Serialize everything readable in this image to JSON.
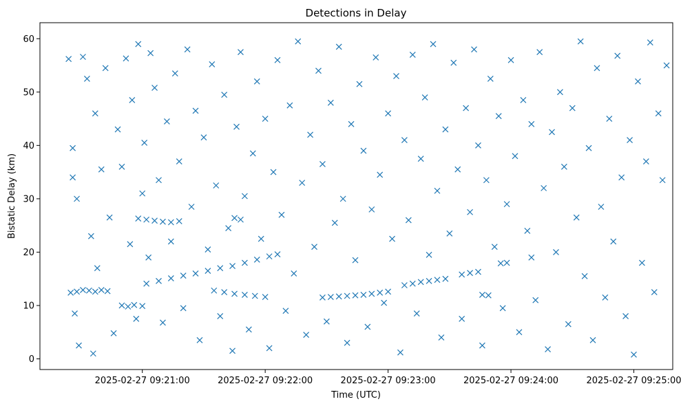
{
  "chart_data": {
    "type": "scatter",
    "title": "Detections in Delay",
    "xlabel": "Time (UTC)",
    "ylabel": "Bistatic Delay (km)",
    "marker": "x",
    "color": "#1f77b4",
    "grid": false,
    "xlim": [
      "2025-02-27 09:20:10",
      "2025-02-27 09:25:19"
    ],
    "ylim": [
      -2,
      63
    ],
    "x_ticks": [
      "2025-02-27 09:21:00",
      "2025-02-27 09:22:00",
      "2025-02-27 09:23:00",
      "2025-02-27 09:24:00",
      "2025-02-27 09:25:00"
    ],
    "y_ticks": [
      0,
      10,
      20,
      30,
      40,
      50,
      60
    ],
    "series": [
      {
        "values": [
          [
            "2025-02-27 09:20:25",
            12.4
          ],
          [
            "2025-02-27 09:20:28",
            12.6
          ],
          [
            "2025-02-27 09:20:31",
            12.9
          ],
          [
            "2025-02-27 09:20:34",
            12.8
          ],
          [
            "2025-02-27 09:20:37",
            12.6
          ],
          [
            "2025-02-27 09:20:40",
            12.9
          ],
          [
            "2025-02-27 09:20:43",
            12.7
          ],
          [
            "2025-02-27 09:20:50",
            10.0
          ],
          [
            "2025-02-27 09:20:53",
            9.8
          ],
          [
            "2025-02-27 09:20:56",
            10.1
          ],
          [
            "2025-02-27 09:21:00",
            9.9
          ],
          [
            "2025-02-27 09:21:02",
            14.1
          ],
          [
            "2025-02-27 09:21:08",
            14.6
          ],
          [
            "2025-02-27 09:21:14",
            15.1
          ],
          [
            "2025-02-27 09:21:20",
            15.6
          ],
          [
            "2025-02-27 09:21:26",
            16.0
          ],
          [
            "2025-02-27 09:21:32",
            16.5
          ],
          [
            "2025-02-27 09:21:38",
            17.0
          ],
          [
            "2025-02-27 09:21:44",
            17.4
          ],
          [
            "2025-02-27 09:21:50",
            18.0
          ],
          [
            "2025-02-27 09:21:56",
            18.6
          ],
          [
            "2025-02-27 09:22:02",
            19.2
          ],
          [
            "2025-02-27 09:22:06",
            19.6
          ],
          [
            "2025-02-27 09:21:35",
            12.8
          ],
          [
            "2025-02-27 09:21:40",
            12.5
          ],
          [
            "2025-02-27 09:21:45",
            12.2
          ],
          [
            "2025-02-27 09:21:50",
            12.0
          ],
          [
            "2025-02-27 09:21:55",
            11.8
          ],
          [
            "2025-02-27 09:22:00",
            11.6
          ],
          [
            "2025-02-27 09:20:58",
            26.3
          ],
          [
            "2025-02-27 09:21:02",
            26.1
          ],
          [
            "2025-02-27 09:21:06",
            25.9
          ],
          [
            "2025-02-27 09:21:10",
            25.7
          ],
          [
            "2025-02-27 09:21:14",
            25.6
          ],
          [
            "2025-02-27 09:21:18",
            25.8
          ],
          [
            "2025-02-27 09:21:45",
            26.4
          ],
          [
            "2025-02-27 09:21:48",
            26.1
          ],
          [
            "2025-02-27 09:22:28",
            11.5
          ],
          [
            "2025-02-27 09:22:32",
            11.6
          ],
          [
            "2025-02-27 09:22:36",
            11.7
          ],
          [
            "2025-02-27 09:22:40",
            11.8
          ],
          [
            "2025-02-27 09:22:44",
            11.9
          ],
          [
            "2025-02-27 09:22:48",
            12.0
          ],
          [
            "2025-02-27 09:22:52",
            12.2
          ],
          [
            "2025-02-27 09:22:56",
            12.4
          ],
          [
            "2025-02-27 09:23:00",
            12.6
          ],
          [
            "2025-02-27 09:23:08",
            13.8
          ],
          [
            "2025-02-27 09:23:12",
            14.1
          ],
          [
            "2025-02-27 09:23:16",
            14.4
          ],
          [
            "2025-02-27 09:23:20",
            14.6
          ],
          [
            "2025-02-27 09:23:24",
            14.8
          ],
          [
            "2025-02-27 09:23:28",
            15.0
          ],
          [
            "2025-02-27 09:23:36",
            15.8
          ],
          [
            "2025-02-27 09:23:40",
            16.1
          ],
          [
            "2025-02-27 09:23:44",
            16.3
          ],
          [
            "2025-02-27 09:23:46",
            12.0
          ],
          [
            "2025-02-27 09:23:49",
            11.9
          ],
          [
            "2025-02-27 09:23:55",
            17.9
          ],
          [
            "2025-02-27 09:23:58",
            18.0
          ],
          [
            "2025-02-27 09:24:10",
            19.0
          ],
          [
            "2025-02-27 09:20:24",
            56.2
          ],
          [
            "2025-02-27 09:20:26",
            34.0
          ],
          [
            "2025-02-27 09:20:26",
            39.5
          ],
          [
            "2025-02-27 09:20:27",
            8.5
          ],
          [
            "2025-02-27 09:20:28",
            30.0
          ],
          [
            "2025-02-27 09:20:29",
            2.5
          ],
          [
            "2025-02-27 09:20:31",
            56.6
          ],
          [
            "2025-02-27 09:20:33",
            52.5
          ],
          [
            "2025-02-27 09:20:35",
            23.0
          ],
          [
            "2025-02-27 09:20:36",
            1.0
          ],
          [
            "2025-02-27 09:20:37",
            46.0
          ],
          [
            "2025-02-27 09:20:38",
            17.0
          ],
          [
            "2025-02-27 09:20:40",
            35.5
          ],
          [
            "2025-02-27 09:20:42",
            54.5
          ],
          [
            "2025-02-27 09:20:44",
            26.5
          ],
          [
            "2025-02-27 09:20:46",
            4.8
          ],
          [
            "2025-02-27 09:20:48",
            43.0
          ],
          [
            "2025-02-27 09:20:50",
            36.0
          ],
          [
            "2025-02-27 09:20:52",
            56.3
          ],
          [
            "2025-02-27 09:20:54",
            21.5
          ],
          [
            "2025-02-27 09:20:55",
            48.5
          ],
          [
            "2025-02-27 09:20:57",
            7.5
          ],
          [
            "2025-02-27 09:20:58",
            59.0
          ],
          [
            "2025-02-27 09:21:00",
            31.0
          ],
          [
            "2025-02-27 09:21:01",
            40.5
          ],
          [
            "2025-02-27 09:21:03",
            19.0
          ],
          [
            "2025-02-27 09:21:04",
            57.3
          ],
          [
            "2025-02-27 09:21:06",
            50.8
          ],
          [
            "2025-02-27 09:21:08",
            33.5
          ],
          [
            "2025-02-27 09:21:10",
            6.8
          ],
          [
            "2025-02-27 09:21:12",
            44.5
          ],
          [
            "2025-02-27 09:21:14",
            22.0
          ],
          [
            "2025-02-27 09:21:16",
            53.5
          ],
          [
            "2025-02-27 09:21:18",
            37.0
          ],
          [
            "2025-02-27 09:21:20",
            9.5
          ],
          [
            "2025-02-27 09:21:22",
            58.0
          ],
          [
            "2025-02-27 09:21:24",
            28.5
          ],
          [
            "2025-02-27 09:21:26",
            46.5
          ],
          [
            "2025-02-27 09:21:28",
            3.5
          ],
          [
            "2025-02-27 09:21:30",
            41.5
          ],
          [
            "2025-02-27 09:21:32",
            20.5
          ],
          [
            "2025-02-27 09:21:34",
            55.2
          ],
          [
            "2025-02-27 09:21:36",
            32.5
          ],
          [
            "2025-02-27 09:21:38",
            8.0
          ],
          [
            "2025-02-27 09:21:40",
            49.5
          ],
          [
            "2025-02-27 09:21:42",
            24.5
          ],
          [
            "2025-02-27 09:21:44",
            1.5
          ],
          [
            "2025-02-27 09:21:46",
            43.5
          ],
          [
            "2025-02-27 09:21:48",
            57.5
          ],
          [
            "2025-02-27 09:21:50",
            30.5
          ],
          [
            "2025-02-27 09:21:52",
            5.5
          ],
          [
            "2025-02-27 09:21:54",
            38.5
          ],
          [
            "2025-02-27 09:21:56",
            52.0
          ],
          [
            "2025-02-27 09:21:58",
            22.5
          ],
          [
            "2025-02-27 09:22:00",
            45.0
          ],
          [
            "2025-02-27 09:22:02",
            2.0
          ],
          [
            "2025-02-27 09:22:04",
            35.0
          ],
          [
            "2025-02-27 09:22:06",
            56.0
          ],
          [
            "2025-02-27 09:22:08",
            27.0
          ],
          [
            "2025-02-27 09:22:10",
            9.0
          ],
          [
            "2025-02-27 09:22:12",
            47.5
          ],
          [
            "2025-02-27 09:22:14",
            16.0
          ],
          [
            "2025-02-27 09:22:16",
            59.5
          ],
          [
            "2025-02-27 09:22:18",
            33.0
          ],
          [
            "2025-02-27 09:22:20",
            4.5
          ],
          [
            "2025-02-27 09:22:22",
            42.0
          ],
          [
            "2025-02-27 09:22:24",
            21.0
          ],
          [
            "2025-02-27 09:22:26",
            54.0
          ],
          [
            "2025-02-27 09:22:28",
            36.5
          ],
          [
            "2025-02-27 09:22:30",
            7.0
          ],
          [
            "2025-02-27 09:22:32",
            48.0
          ],
          [
            "2025-02-27 09:22:34",
            25.5
          ],
          [
            "2025-02-27 09:22:36",
            58.5
          ],
          [
            "2025-02-27 09:22:38",
            30.0
          ],
          [
            "2025-02-27 09:22:40",
            3.0
          ],
          [
            "2025-02-27 09:22:42",
            44.0
          ],
          [
            "2025-02-27 09:22:44",
            18.5
          ],
          [
            "2025-02-27 09:22:46",
            51.5
          ],
          [
            "2025-02-27 09:22:48",
            39.0
          ],
          [
            "2025-02-27 09:22:50",
            6.0
          ],
          [
            "2025-02-27 09:22:52",
            28.0
          ],
          [
            "2025-02-27 09:22:54",
            56.5
          ],
          [
            "2025-02-27 09:22:56",
            34.5
          ],
          [
            "2025-02-27 09:22:58",
            10.5
          ],
          [
            "2025-02-27 09:23:00",
            46.0
          ],
          [
            "2025-02-27 09:23:02",
            22.5
          ],
          [
            "2025-02-27 09:23:04",
            53.0
          ],
          [
            "2025-02-27 09:23:06",
            1.2
          ],
          [
            "2025-02-27 09:23:08",
            41.0
          ],
          [
            "2025-02-27 09:23:10",
            26.0
          ],
          [
            "2025-02-27 09:23:12",
            57.0
          ],
          [
            "2025-02-27 09:23:14",
            8.5
          ],
          [
            "2025-02-27 09:23:16",
            37.5
          ],
          [
            "2025-02-27 09:23:18",
            49.0
          ],
          [
            "2025-02-27 09:23:20",
            19.5
          ],
          [
            "2025-02-27 09:23:22",
            59.0
          ],
          [
            "2025-02-27 09:23:24",
            31.5
          ],
          [
            "2025-02-27 09:23:26",
            4.0
          ],
          [
            "2025-02-27 09:23:28",
            43.0
          ],
          [
            "2025-02-27 09:23:30",
            23.5
          ],
          [
            "2025-02-27 09:23:32",
            55.5
          ],
          [
            "2025-02-27 09:23:34",
            35.5
          ],
          [
            "2025-02-27 09:23:36",
            7.5
          ],
          [
            "2025-02-27 09:23:38",
            47.0
          ],
          [
            "2025-02-27 09:23:40",
            27.5
          ],
          [
            "2025-02-27 09:23:42",
            58.0
          ],
          [
            "2025-02-27 09:23:44",
            40.0
          ],
          [
            "2025-02-27 09:23:46",
            2.5
          ],
          [
            "2025-02-27 09:23:48",
            33.5
          ],
          [
            "2025-02-27 09:23:50",
            52.5
          ],
          [
            "2025-02-27 09:23:52",
            21.0
          ],
          [
            "2025-02-27 09:23:54",
            45.5
          ],
          [
            "2025-02-27 09:23:56",
            9.5
          ],
          [
            "2025-02-27 09:23:58",
            29.0
          ],
          [
            "2025-02-27 09:24:00",
            56.0
          ],
          [
            "2025-02-27 09:24:02",
            38.0
          ],
          [
            "2025-02-27 09:24:04",
            5.0
          ],
          [
            "2025-02-27 09:24:06",
            48.5
          ],
          [
            "2025-02-27 09:24:08",
            24.0
          ],
          [
            "2025-02-27 09:24:10",
            44.0
          ],
          [
            "2025-02-27 09:24:12",
            11.0
          ],
          [
            "2025-02-27 09:24:14",
            57.5
          ],
          [
            "2025-02-27 09:24:16",
            32.0
          ],
          [
            "2025-02-27 09:24:18",
            1.8
          ],
          [
            "2025-02-27 09:24:20",
            42.5
          ],
          [
            "2025-02-27 09:24:22",
            20.0
          ],
          [
            "2025-02-27 09:24:24",
            50.0
          ],
          [
            "2025-02-27 09:24:26",
            36.0
          ],
          [
            "2025-02-27 09:24:28",
            6.5
          ],
          [
            "2025-02-27 09:24:30",
            47.0
          ],
          [
            "2025-02-27 09:24:32",
            26.5
          ],
          [
            "2025-02-27 09:24:34",
            59.5
          ],
          [
            "2025-02-27 09:24:36",
            15.5
          ],
          [
            "2025-02-27 09:24:38",
            39.5
          ],
          [
            "2025-02-27 09:24:40",
            3.5
          ],
          [
            "2025-02-27 09:24:42",
            54.5
          ],
          [
            "2025-02-27 09:24:44",
            28.5
          ],
          [
            "2025-02-27 09:24:46",
            11.5
          ],
          [
            "2025-02-27 09:24:48",
            45.0
          ],
          [
            "2025-02-27 09:24:50",
            22.0
          ],
          [
            "2025-02-27 09:24:52",
            56.8
          ],
          [
            "2025-02-27 09:24:54",
            34.0
          ],
          [
            "2025-02-27 09:24:56",
            8.0
          ],
          [
            "2025-02-27 09:24:58",
            41.0
          ],
          [
            "2025-02-27 09:25:00",
            0.8
          ],
          [
            "2025-02-27 09:25:02",
            52.0
          ],
          [
            "2025-02-27 09:25:04",
            18.0
          ],
          [
            "2025-02-27 09:25:06",
            37.0
          ],
          [
            "2025-02-27 09:25:08",
            59.3
          ],
          [
            "2025-02-27 09:25:10",
            12.5
          ],
          [
            "2025-02-27 09:25:12",
            46.0
          ],
          [
            "2025-02-27 09:25:14",
            33.5
          ],
          [
            "2025-02-27 09:25:16",
            55.0
          ]
        ]
      }
    ]
  }
}
